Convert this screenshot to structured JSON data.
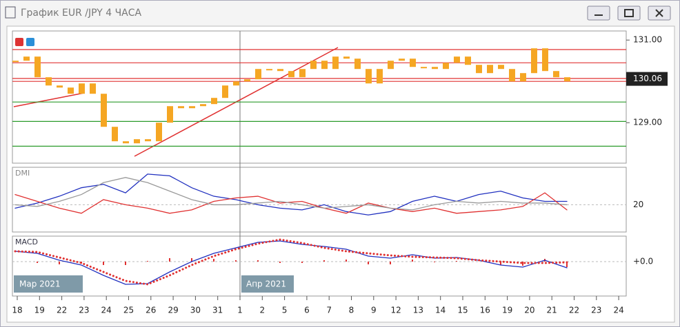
{
  "window": {
    "title": "График EUR /JPY  4 ЧАСА"
  },
  "price_panel": {
    "ylim": [
      128.02,
      131.22
    ],
    "yticks": [
      {
        "value": 131,
        "label": "131.00"
      },
      {
        "value": 129,
        "label": "129.00"
      }
    ],
    "current_price": 130.06,
    "candle_color": "#f5a623",
    "levels": [
      {
        "value": 130.77,
        "color": "#e03030"
      },
      {
        "value": 130.45,
        "color": "#e03030"
      },
      {
        "value": 130.07,
        "color": "#e03030"
      },
      {
        "value": 130.0,
        "color": "#e03030"
      },
      {
        "value": 129.5,
        "color": "#2a9a2a"
      },
      {
        "value": 129.03,
        "color": "#2a9a2a"
      },
      {
        "value": 128.43,
        "color": "#2a9a2a"
      }
    ],
    "closes": [
      130.5,
      130.6,
      130.1,
      129.9,
      129.85,
      129.7,
      129.95,
      129.7,
      128.9,
      128.55,
      128.5,
      128.6,
      128.55,
      129.0,
      129.4,
      129.35,
      129.4,
      129.45,
      129.6,
      129.9,
      130.0,
      130.05,
      130.3,
      130.3,
      130.25,
      130.1,
      130.3,
      130.5,
      130.3,
      130.6,
      130.55,
      130.3,
      129.95,
      130.3,
      130.5,
      130.55,
      130.35,
      130.35,
      130.3,
      130.45,
      130.6,
      130.4,
      130.2,
      130.4,
      130.3,
      130.0,
      130.2,
      130.8,
      130.25,
      130.1,
      130.0
    ]
  },
  "dmi_panel": {
    "label": "DMI",
    "ylim": [
      4,
      42
    ],
    "yticks": [
      20
    ],
    "series": [
      {
        "color": "#1f2fbf",
        "values": [
          18,
          21,
          25,
          30,
          32,
          27,
          38,
          37,
          30,
          25,
          23,
          20,
          18,
          17,
          20,
          16,
          14,
          16,
          22,
          25,
          22,
          26,
          28,
          24,
          22,
          22
        ]
      },
      {
        "color": "#e03030",
        "values": [
          26,
          22,
          18,
          15,
          23,
          20,
          18,
          15,
          17,
          22,
          24,
          25,
          21,
          22,
          18,
          15,
          21,
          18,
          16,
          18,
          15,
          16,
          17,
          19,
          27,
          17
        ]
      },
      {
        "color": "#999999",
        "values": [
          20,
          19,
          22,
          26,
          33,
          36,
          33,
          28,
          23,
          20,
          20,
          21,
          22,
          20,
          18,
          19,
          20,
          18,
          17,
          20,
          22,
          21,
          22,
          21,
          21,
          20
        ]
      }
    ]
  },
  "macd_panel": {
    "label": "MACD",
    "ylim": [
      -0.5,
      0.37
    ],
    "yticks": [
      {
        "value": 0,
        "label": "+0.0"
      }
    ],
    "macd": {
      "color": "#1f2fbf",
      "values": [
        0.15,
        0.12,
        0.02,
        -0.05,
        -0.2,
        -0.33,
        -0.32,
        -0.15,
        0.0,
        0.12,
        0.2,
        0.28,
        0.3,
        0.25,
        0.22,
        0.18,
        0.08,
        0.05,
        0.1,
        0.05,
        0.06,
        0.02,
        -0.05,
        -0.08,
        0.02,
        -0.09
      ]
    },
    "signal": {
      "color": "#e03030",
      "values": [
        0.15,
        0.14,
        0.06,
        -0.02,
        -0.15,
        -0.28,
        -0.33,
        -0.2,
        -0.05,
        0.08,
        0.18,
        0.26,
        0.32,
        0.27,
        0.2,
        0.15,
        0.12,
        0.09,
        0.07,
        0.06,
        0.05,
        0.02,
        0.0,
        -0.02,
        -0.02,
        -0.01
      ]
    },
    "histogram": [
      0,
      -0.02,
      -0.04,
      -0.03,
      -0.05,
      -0.05,
      0.01,
      0.05,
      0.05,
      0.04,
      0.02,
      0.02,
      -0.02,
      -0.02,
      0.02,
      0.03,
      -0.04,
      -0.04,
      0.03,
      -0.01,
      0.01,
      0,
      -0.05,
      -0.06,
      0.04,
      -0.08
    ]
  },
  "x_axis": {
    "labels": [
      "18",
      "19",
      "22",
      "23",
      "24",
      "25",
      "26",
      "29",
      "30",
      "31",
      "1",
      "2",
      "5",
      "6",
      "7",
      "8",
      "9",
      "12",
      "13",
      "14",
      "15",
      "16",
      "19",
      "20",
      "21",
      "22",
      "23",
      "24"
    ]
  },
  "period_labels": [
    "Мар 2021",
    "Апр 2021"
  ]
}
